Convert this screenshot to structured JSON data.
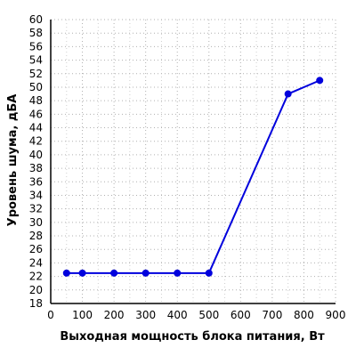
{
  "chart_data": {
    "type": "line",
    "title": "",
    "xlabel": "Выходная мощность блока питания, Вт",
    "ylabel": "Уровень шума, дБА",
    "xlim": [
      0,
      900
    ],
    "ylim": [
      18,
      60
    ],
    "x_ticks": [
      0,
      100,
      200,
      300,
      400,
      500,
      600,
      700,
      800,
      900
    ],
    "y_ticks": [
      18,
      20,
      22,
      24,
      26,
      28,
      30,
      32,
      34,
      36,
      38,
      40,
      42,
      44,
      46,
      48,
      50,
      52,
      54,
      56,
      58,
      60
    ],
    "grid": true,
    "legend": "none",
    "series": [
      {
        "color": "#0000dd",
        "x": [
          50,
          100,
          200,
          300,
          400,
          500,
          750,
          850
        ],
        "y": [
          22.5,
          22.5,
          22.5,
          22.5,
          22.5,
          22.5,
          49.0,
          51.0
        ]
      }
    ]
  }
}
